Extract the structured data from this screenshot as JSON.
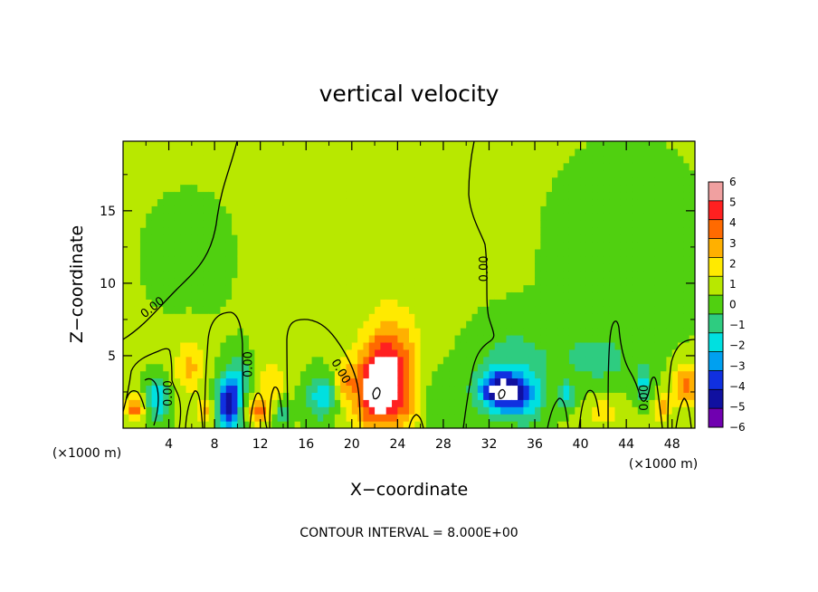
{
  "chart_data": {
    "type": "heatmap",
    "title": "vertical velocity",
    "xlabel": "X−coordinate",
    "ylabel": "Z−coordinate",
    "x_unit_left": "(×1000 m)",
    "x_unit_right": "(×1000 m)",
    "footer": "CONTOUR INTERVAL = 8.000E+00",
    "xlim": [
      0,
      50
    ],
    "ylim": [
      0,
      19.8
    ],
    "x_ticks": [
      4,
      8,
      12,
      16,
      20,
      24,
      28,
      32,
      36,
      40,
      44,
      48
    ],
    "x_tick_labels": [
      "4",
      "8",
      "12",
      "16",
      "20",
      "24",
      "28",
      "32",
      "36",
      "40",
      "44",
      "48"
    ],
    "y_ticks": [
      5,
      10,
      15
    ],
    "y_tick_labels": [
      "5",
      "10",
      "15"
    ],
    "colorbar": {
      "range": [
        -6,
        6
      ],
      "labels": [
        "6",
        "5",
        "4",
        "3",
        "2",
        "1",
        "0",
        "−1",
        "−2",
        "−3",
        "−4",
        "−5",
        "−6"
      ],
      "colors": [
        "#f0a0a0",
        "#ff2020",
        "#ff6a00",
        "#ffb000",
        "#ffea00",
        "#b8e800",
        "#50d010",
        "#2ecc80",
        "#00e0e0",
        "#00a0f0",
        "#1030e0",
        "#1010a0",
        "#7000b0"
      ]
    },
    "background_value": 0.6,
    "features": [
      {
        "x": 1.0,
        "z": 1.4,
        "sx": 0.6,
        "sz": 0.6,
        "w": 3.5
      },
      {
        "x": 3.0,
        "z": 2.0,
        "sx": 0.7,
        "sz": 1.0,
        "w": -3.0
      },
      {
        "x": 5.8,
        "z": 4.3,
        "sx": 0.9,
        "sz": 1.3,
        "w": 2.2
      },
      {
        "x": 7.2,
        "z": 1.2,
        "sx": 0.5,
        "sz": 0.6,
        "w": 2.5
      },
      {
        "x": 9.2,
        "z": 1.6,
        "sx": 0.7,
        "sz": 1.4,
        "w": -5.6
      },
      {
        "x": 10.2,
        "z": 3.5,
        "sx": 0.6,
        "sz": 1.2,
        "w": -2.0
      },
      {
        "x": 11.8,
        "z": 1.2,
        "sx": 0.6,
        "sz": 0.6,
        "w": 3.6
      },
      {
        "x": 13.0,
        "z": 3.2,
        "sx": 0.8,
        "sz": 1.2,
        "w": 1.8
      },
      {
        "x": 14.0,
        "z": 1.0,
        "sx": 0.5,
        "sz": 0.8,
        "w": -1.8
      },
      {
        "x": 17.4,
        "z": 2.2,
        "sx": 0.9,
        "sz": 1.1,
        "w": -3.0
      },
      {
        "x": 19.3,
        "z": 3.2,
        "sx": 0.5,
        "sz": 0.8,
        "w": 2.0
      },
      {
        "x": 22.5,
        "z": 2.6,
        "sx": 1.7,
        "sz": 1.9,
        "w": 6.2
      },
      {
        "x": 23.5,
        "z": 5.5,
        "sx": 1.6,
        "sz": 1.8,
        "w": 2.5
      },
      {
        "x": 25.2,
        "z": 1.6,
        "sx": 0.8,
        "sz": 0.9,
        "w": 1.2
      },
      {
        "x": 27.8,
        "z": 2.0,
        "sx": 1.4,
        "sz": 1.3,
        "w": -1.0
      },
      {
        "x": 32.8,
        "z": 2.6,
        "sx": 1.3,
        "sz": 1.0,
        "w": -5.6
      },
      {
        "x": 35.0,
        "z": 2.2,
        "sx": 1.3,
        "sz": 1.3,
        "w": -3.2
      },
      {
        "x": 34.0,
        "z": 5.2,
        "sx": 2.6,
        "sz": 1.8,
        "w": -1.3
      },
      {
        "x": 38.8,
        "z": 2.2,
        "sx": 0.5,
        "sz": 0.6,
        "w": -2.6
      },
      {
        "x": 42.0,
        "z": 1.2,
        "sx": 1.2,
        "sz": 0.8,
        "w": 1.5
      },
      {
        "x": 41.5,
        "z": 4.8,
        "sx": 2.5,
        "sz": 1.4,
        "w": -1.4
      },
      {
        "x": 45.5,
        "z": 3.0,
        "sx": 0.5,
        "sz": 0.9,
        "w": -2.2
      },
      {
        "x": 49.2,
        "z": 3.0,
        "sx": 0.8,
        "sz": 1.0,
        "w": 3.5
      },
      {
        "x": 47.2,
        "z": 1.4,
        "sx": 0.5,
        "sz": 0.7,
        "w": 2.2
      },
      {
        "x": 23.0,
        "z": 13.0,
        "sx": 5.0,
        "sz": 4.0,
        "w": 0.7
      },
      {
        "x": 44.0,
        "z": 12.0,
        "sx": 5.0,
        "sz": 5.0,
        "w": -0.4
      },
      {
        "x": 6.0,
        "z": 12.0,
        "sx": 4.0,
        "sz": 4.0,
        "w": -0.2
      }
    ],
    "contour_label": "0.00",
    "contour_label_positions": [
      {
        "x": 2.6,
        "z": 8.3,
        "angle": -38
      },
      {
        "x": 4.0,
        "z": 2.4,
        "angle": -90
      },
      {
        "x": 11.0,
        "z": 4.4,
        "angle": -90
      },
      {
        "x": 19.0,
        "z": 3.9,
        "angle": 60
      },
      {
        "x": 31.6,
        "z": 11.0,
        "angle": -90
      },
      {
        "x": 45.6,
        "z": 2.1,
        "angle": -90
      }
    ]
  }
}
